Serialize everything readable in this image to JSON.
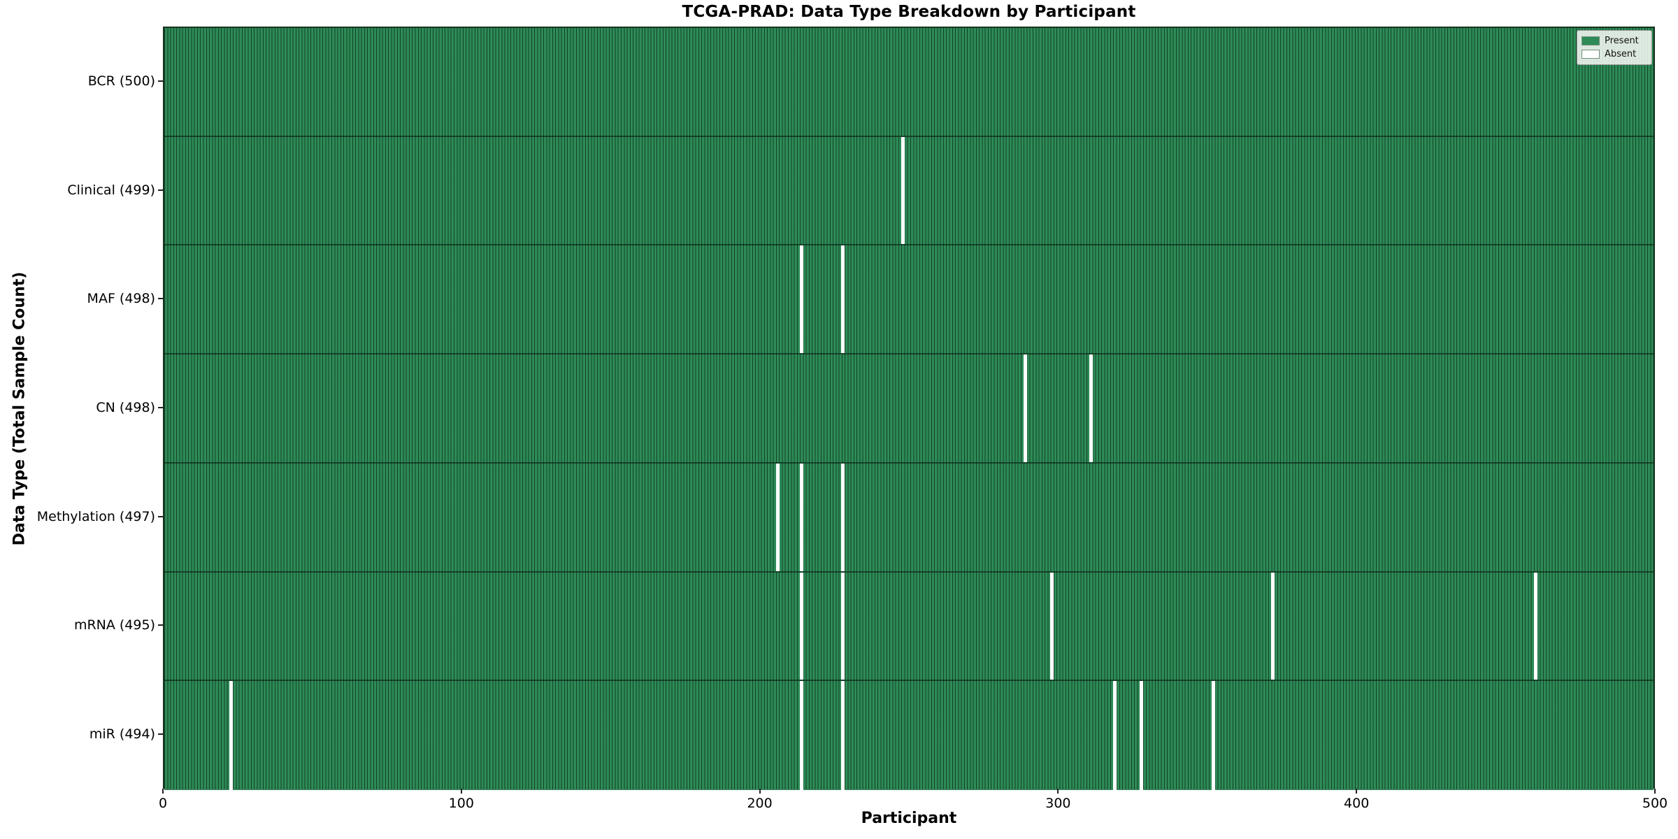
{
  "figure": {
    "title": "TCGA-PRAD: Data Type Breakdown by Participant",
    "xlabel": "Participant",
    "ylabel": "Data Type (Total Sample Count)"
  },
  "legend": {
    "items": [
      {
        "label": "Present",
        "color": "#2e8b57"
      },
      {
        "label": "Absent",
        "color": "#ffffff"
      }
    ]
  },
  "chart_data": {
    "type": "heatmap",
    "title": "TCGA-PRAD: Data Type Breakdown by Participant",
    "xlabel": "Participant",
    "ylabel": "Data Type (Total Sample Count)",
    "x_range": [
      0,
      500
    ],
    "x_ticks": [
      0,
      100,
      200,
      300,
      400,
      500
    ],
    "n_participants": 500,
    "present_color": "#2e8b57",
    "absent_color": "#ffffff",
    "grid": false,
    "legend_position": "upper right",
    "rows": [
      {
        "label": "BCR (500)",
        "data_type": "BCR",
        "present_count": 500,
        "absent_participants": []
      },
      {
        "label": "Clinical (499)",
        "data_type": "Clinical",
        "present_count": 499,
        "absent_participants": [
          247
        ]
      },
      {
        "label": "MAF (498)",
        "data_type": "MAF",
        "present_count": 498,
        "absent_participants": [
          213,
          227
        ]
      },
      {
        "label": "CN (498)",
        "data_type": "CN",
        "present_count": 498,
        "absent_participants": [
          288,
          310
        ]
      },
      {
        "label": "Methylation (497)",
        "data_type": "Methylation",
        "present_count": 497,
        "absent_participants": [
          205,
          213,
          227
        ]
      },
      {
        "label": "mRNA (495)",
        "data_type": "mRNA",
        "present_count": 495,
        "absent_participants": [
          213,
          227,
          297,
          371,
          459
        ]
      },
      {
        "label": "miR (494)",
        "data_type": "miR",
        "present_count": 494,
        "absent_participants": [
          22,
          213,
          227,
          318,
          327,
          351
        ]
      }
    ]
  }
}
